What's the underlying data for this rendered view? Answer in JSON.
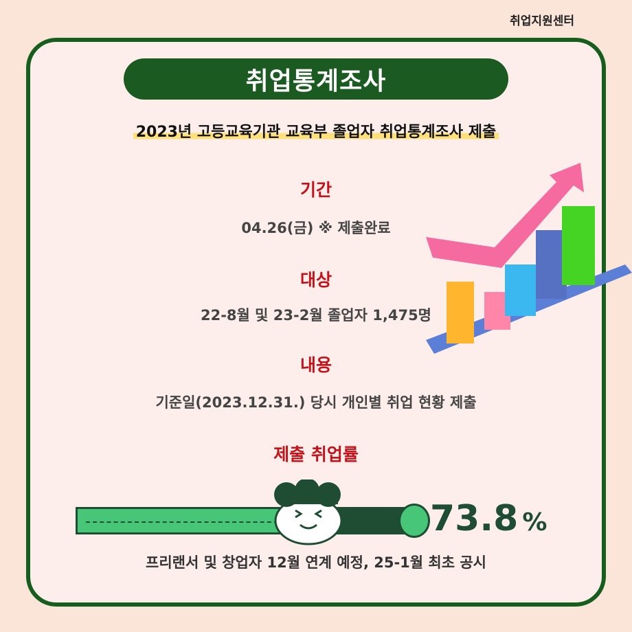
{
  "header": {
    "org": "취업지원센터"
  },
  "title": "취업통계조사",
  "subtitle": "2023년 고등교육기관 교육부 졸업자 취업통계조사 제출",
  "sections": [
    {
      "heading": "기간",
      "body": "04.26(금) ※ 제출완료"
    },
    {
      "heading": "대상",
      "body": "22-8월 및 23-2월 졸업자 1,475명"
    },
    {
      "heading": "내용",
      "body": "기준일(2023.12.31.) 당시 개인별 취업 현황 제출"
    }
  ],
  "rate": {
    "heading": "제출 취업률",
    "value": "73.8",
    "unit": "%",
    "progress": 73.8
  },
  "note": "프리랜서 및 창업자 12월 연계 예정, 25-1월 최초 공시",
  "colors": {
    "brand": "#1b5a21",
    "accent": "#c4121a",
    "progress": "#47c677"
  }
}
